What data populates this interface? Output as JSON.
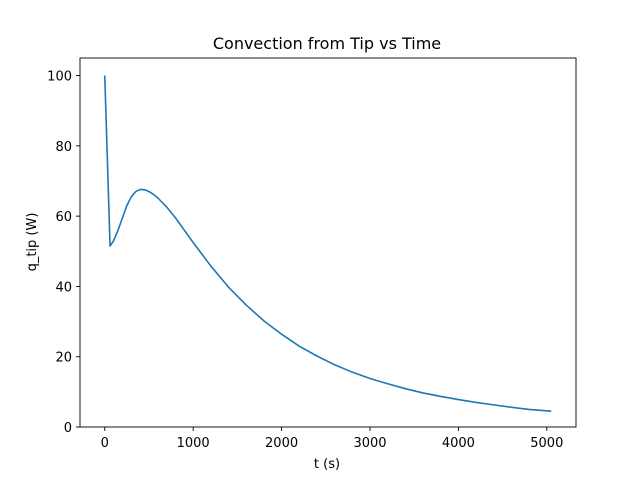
{
  "chart_data": {
    "type": "line",
    "title": "Convection from Tip vs Time",
    "xlabel": "t (s)",
    "ylabel": "q_tip (W)",
    "xlim": [
      -280,
      5330
    ],
    "ylim": [
      0,
      105
    ],
    "xticks": [
      0,
      1000,
      2000,
      3000,
      4000,
      5000
    ],
    "yticks": [
      0,
      20,
      40,
      60,
      80,
      100
    ],
    "grid": false,
    "legend": "none",
    "series": [
      {
        "color": "#1f77b4",
        "x": [
          0,
          60,
          100,
          150,
          200,
          250,
          300,
          350,
          400,
          450,
          500,
          550,
          600,
          700,
          800,
          900,
          1000,
          1200,
          1400,
          1600,
          1800,
          2000,
          2200,
          2400,
          2600,
          2800,
          3000,
          3200,
          3400,
          3600,
          3800,
          4000,
          4200,
          4400,
          4600,
          4800,
          5050
        ],
        "y": [
          100,
          51.5,
          53,
          56,
          59.5,
          63,
          65.5,
          67,
          67.6,
          67.5,
          67,
          66.2,
          65.2,
          62.6,
          59.5,
          56,
          52.5,
          45.8,
          39.8,
          34.7,
          30.2,
          26.4,
          23,
          20.2,
          17.7,
          15.6,
          13.8,
          12.3,
          10.9,
          9.7,
          8.7,
          7.8,
          7,
          6.3,
          5.6,
          5,
          4.5
        ]
      }
    ]
  }
}
